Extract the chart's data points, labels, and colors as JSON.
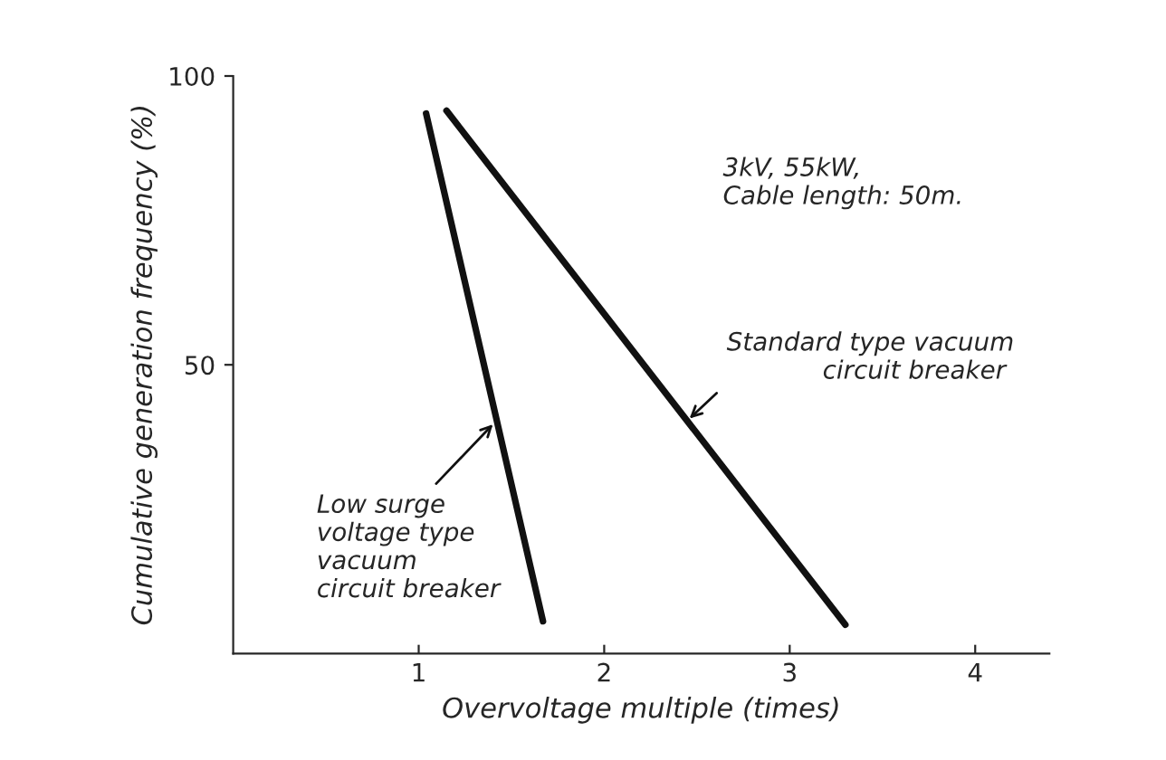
{
  "chart_data": {
    "type": "line",
    "xlabel": "Overvoltage multiple (times)",
    "ylabel": "Cumulative generation frequency (%)",
    "xlim": [
      0,
      4.4
    ],
    "xticks": [
      1,
      2,
      3,
      4
    ],
    "ylim": [
      0,
      100
    ],
    "yticks": [
      50,
      100
    ],
    "marker": "none",
    "line_style": "solid",
    "series": [
      {
        "color": "#111111",
        "x": [
          1.04,
          1.67
        ],
        "values": [
          93.5,
          5.6
        ]
      },
      {
        "color": "#111111",
        "x": [
          1.15,
          3.3
        ],
        "values": [
          94,
          5
        ]
      }
    ],
    "annotations": [
      "3kV, 55kW,\nCable length: 50m.",
      {
        "text": "Standard type vacuum\n            circuit breaker",
        "x": 2.46,
        "y": 40.7
      },
      {
        "text": "Low surge\nvoltage type\nvacuum\ncircuit breaker",
        "x": 1.4,
        "y": 39.7
      }
    ]
  }
}
